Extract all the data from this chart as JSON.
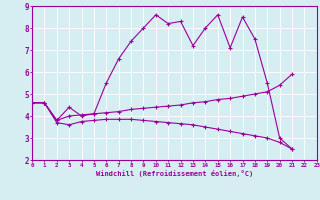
{
  "xlabel": "Windchill (Refroidissement éolien,°C)",
  "background_color": "#d6eef2",
  "line_color": "#990099",
  "grid_color": "#ffffff",
  "xmin": 0,
  "xmax": 23,
  "ymin": 2,
  "ymax": 9,
  "x_ticks": [
    0,
    1,
    2,
    3,
    4,
    5,
    6,
    7,
    8,
    9,
    10,
    11,
    12,
    13,
    14,
    15,
    16,
    17,
    18,
    19,
    20,
    21,
    22,
    23
  ],
  "y_ticks": [
    2,
    3,
    4,
    5,
    6,
    7,
    8,
    9
  ],
  "line1_y": [
    4.6,
    4.6,
    3.8,
    4.4,
    4.0,
    4.1,
    5.5,
    6.6,
    7.4,
    8.0,
    8.6,
    8.2,
    8.3,
    7.2,
    8.0,
    8.6,
    7.1,
    8.5,
    7.5,
    5.5,
    3.0,
    2.5,
    null,
    null
  ],
  "line2_y": [
    4.6,
    4.6,
    3.8,
    4.0,
    4.05,
    4.1,
    4.15,
    4.2,
    4.3,
    4.35,
    4.4,
    4.45,
    4.5,
    4.6,
    4.65,
    4.75,
    4.8,
    4.9,
    5.0,
    5.1,
    5.4,
    5.9,
    null,
    null
  ],
  "line3_y": [
    4.6,
    4.6,
    3.7,
    3.6,
    3.75,
    3.8,
    3.85,
    3.85,
    3.85,
    3.8,
    3.75,
    3.7,
    3.65,
    3.6,
    3.5,
    3.4,
    3.3,
    3.2,
    3.1,
    3.0,
    2.8,
    2.5,
    null,
    null
  ]
}
